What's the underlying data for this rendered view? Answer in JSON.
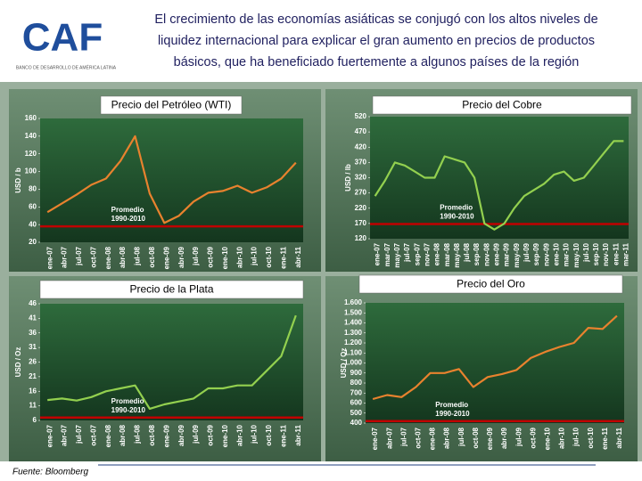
{
  "header": {
    "logo": "CAF",
    "logo_subtitle": "BANCO DE DESARROLLO DE AMÉRICA LATINA",
    "title": [
      "El crecimiento de las economías asiáticas se conjugó con los altos niveles de",
      "liquidez internacional para explicar el gran aumento en precios de productos",
      "básicos, que ha beneficiado fuertemente a algunos países de la región"
    ]
  },
  "source": "Fuente: Bloomberg",
  "chart_data": [
    {
      "type": "line",
      "title": "Precio del Petróleo (WTI)",
      "y_label": "USD / b",
      "categories": [
        "ene-07",
        "abr-07",
        "jul-07",
        "oct-07",
        "ene-08",
        "abr-08",
        "jul-08",
        "oct-08",
        "ene-09",
        "abr-09",
        "jul-09",
        "oct-09",
        "ene-10",
        "abr-10",
        "jul-10",
        "oct-10",
        "ene-11",
        "abr-11"
      ],
      "values": [
        54,
        64,
        74,
        85,
        92,
        112,
        140,
        75,
        42,
        50,
        66,
        76,
        78,
        84,
        76,
        82,
        92,
        110
      ],
      "color": "#e8822e",
      "ylim": [
        20,
        160
      ],
      "yticks": [
        20,
        40,
        60,
        80,
        100,
        120,
        140,
        160
      ],
      "average": 38,
      "average_label": [
        "Promedio",
        "1990-2010"
      ],
      "average_color": "#c00000"
    },
    {
      "type": "line",
      "title": "Precio del Cobre",
      "y_label": "USD / lb",
      "categories": [
        "ene-07",
        "mar-07",
        "may-07",
        "jul-07",
        "sep-07",
        "nov-07",
        "ene-08",
        "mar-08",
        "may-08",
        "jul-08",
        "sep-08",
        "nov-08",
        "ene-09",
        "mar-09",
        "may-09",
        "jul-09",
        "sep-09",
        "nov-09",
        "ene-10",
        "mar-10",
        "may-10",
        "jul-10",
        "sep-10",
        "nov-10",
        "ene-11",
        "mar-11"
      ],
      "values": [
        260,
        310,
        370,
        360,
        340,
        320,
        320,
        390,
        380,
        370,
        320,
        170,
        150,
        170,
        220,
        260,
        280,
        300,
        330,
        340,
        310,
        320,
        360,
        400,
        440,
        440
      ],
      "color": "#93d04f",
      "ylim": [
        120,
        520
      ],
      "yticks": [
        120,
        170,
        220,
        270,
        320,
        370,
        420,
        470,
        520
      ],
      "average": 168,
      "average_label": [
        "Promedio",
        "1990-2010"
      ],
      "average_color": "#c00000"
    },
    {
      "type": "line",
      "title": "Precio de la Plata",
      "y_label": "USD / Oz",
      "categories": [
        "ene-07",
        "abr-07",
        "jul-07",
        "oct-07",
        "ene-08",
        "abr-08",
        "jul-08",
        "oct-08",
        "ene-09",
        "abr-09",
        "jul-09",
        "oct-09",
        "ene-10",
        "abr-10",
        "jul-10",
        "oct-10",
        "ene-11",
        "abr-11"
      ],
      "values": [
        13,
        13.5,
        12.8,
        14,
        16,
        17,
        18,
        10,
        11.5,
        12.5,
        13.5,
        17,
        17,
        18,
        18,
        23,
        28,
        42
      ],
      "color": "#93d04f",
      "ylim": [
        6,
        46
      ],
      "yticks": [
        6,
        11,
        16,
        21,
        26,
        31,
        36,
        41,
        46
      ],
      "average": 7,
      "average_label": [
        "Promedio",
        "1990-2010"
      ],
      "average_color": "#c00000"
    },
    {
      "type": "line",
      "title": "Precio del Oro",
      "y_label": "USD / Oz",
      "categories": [
        "ene-07",
        "abr-07",
        "jul-07",
        "oct-07",
        "ene-08",
        "abr-08",
        "jul-08",
        "oct-08",
        "ene-09",
        "abr-09",
        "jul-09",
        "oct-09",
        "ene-10",
        "abr-10",
        "jul-10",
        "oct-10",
        "ene-11",
        "abr-11"
      ],
      "values": [
        640,
        680,
        660,
        760,
        900,
        900,
        940,
        760,
        860,
        890,
        930,
        1050,
        1110,
        1160,
        1200,
        1350,
        1340,
        1470
      ],
      "color": "#e8822e",
      "ylim": [
        400,
        1600
      ],
      "yticks": [
        400,
        500,
        600,
        700,
        800,
        900,
        {
          "value": 1000,
          "label": "1.000"
        },
        {
          "value": 1100,
          "label": "1.100"
        },
        {
          "value": 1200,
          "label": "1.200"
        },
        {
          "value": 1300,
          "label": "1.300"
        },
        {
          "value": 1400,
          "label": "1.400"
        },
        {
          "value": 1500,
          "label": "1.500"
        },
        {
          "value": 1600,
          "label": "1.600"
        }
      ],
      "average": 420,
      "average_label": [
        "Promedio",
        "1990-2010"
      ],
      "average_color": "#c00000"
    }
  ]
}
